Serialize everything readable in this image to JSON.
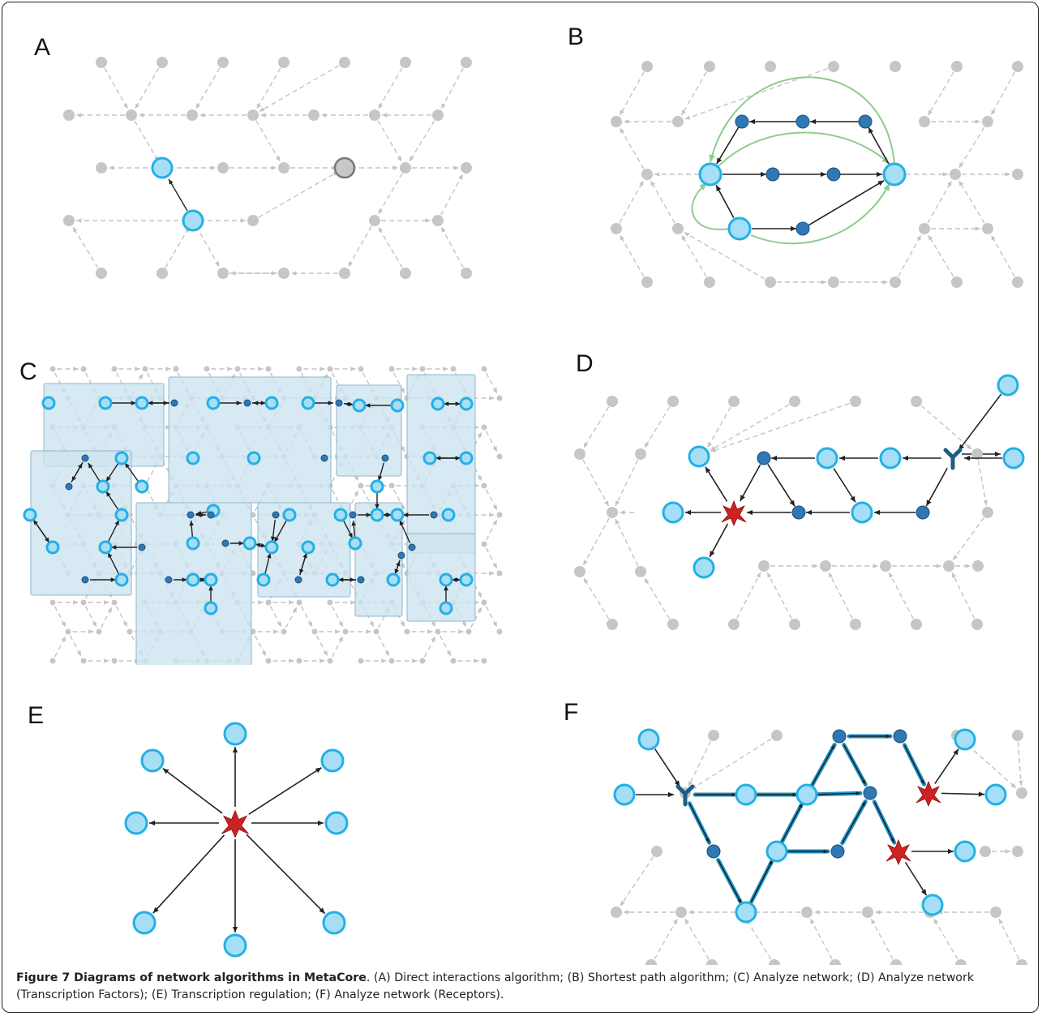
{
  "panels": {
    "a": "A",
    "b": "B",
    "c": "C",
    "d": "D",
    "e": "E",
    "f": "F"
  },
  "caption": {
    "title": "Figure 7 Diagrams of network algorithms in MetaCore",
    "text": ". (A) Direct interactions algorithm; (B) Shortest path algorithm; (C) Analyze network; (D) Analyze network (Transcription Factors); (E) Transcription regulation; (F) Analyze network (Receptors)."
  },
  "colors": {
    "grey_node": "#c6c6c6",
    "blue_node_fill": "#a6dff5",
    "blue_node_stroke": "#23b0e6",
    "dark_node": "#2f78b4",
    "green_edge": "#8fcc8f",
    "tf_red": "#cc2222",
    "receptor": "#1f5f86",
    "cluster_box": "#cde3ef"
  }
}
